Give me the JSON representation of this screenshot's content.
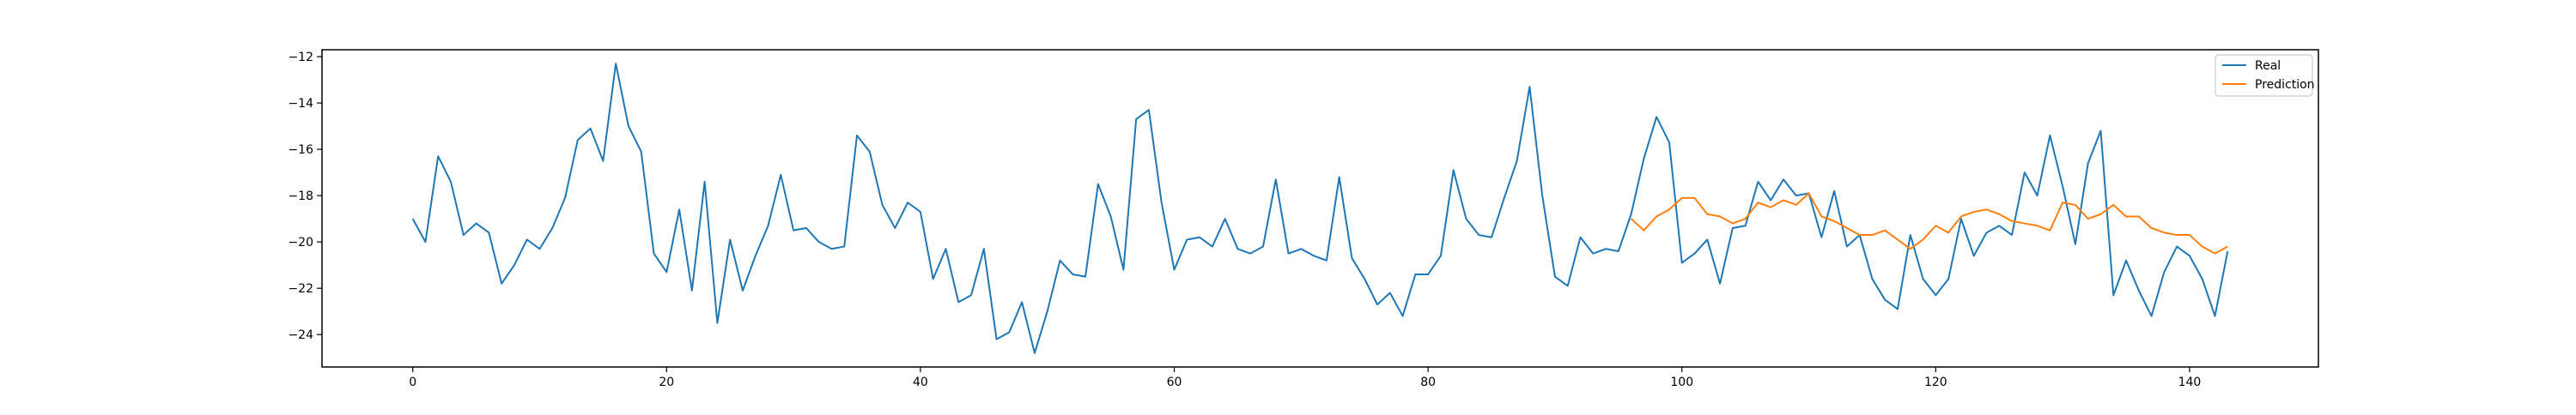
{
  "chart_data": {
    "type": "line",
    "title": "",
    "xlabel": "",
    "ylabel": "",
    "xlim": [
      -7.15,
      150.15
    ],
    "ylim": [
      -25.4,
      -11.7
    ],
    "xticks": [
      0,
      20,
      40,
      60,
      80,
      100,
      120,
      140
    ],
    "yticks": [
      -24,
      -22,
      -20,
      -18,
      -16,
      -14,
      -12
    ],
    "grid": false,
    "legend_position": "upper right",
    "series": [
      {
        "name": "Real",
        "color": "#1f77b4",
        "x_start": 0,
        "values": [
          -19.0,
          -20.0,
          -16.3,
          -17.4,
          -19.7,
          -19.2,
          -19.6,
          -21.8,
          -21.0,
          -19.9,
          -20.3,
          -19.4,
          -18.1,
          -15.6,
          -15.1,
          -16.5,
          -12.3,
          -15.0,
          -16.1,
          -20.5,
          -21.3,
          -18.6,
          -22.1,
          -17.4,
          -23.5,
          -19.9,
          -22.1,
          -20.6,
          -19.3,
          -17.1,
          -19.5,
          -19.4,
          -20.0,
          -20.3,
          -20.2,
          -15.4,
          -16.1,
          -18.4,
          -19.4,
          -18.3,
          -18.7,
          -21.6,
          -20.3,
          -22.6,
          -22.3,
          -20.3,
          -24.2,
          -23.9,
          -22.6,
          -24.8,
          -23.0,
          -20.8,
          -21.4,
          -21.5,
          -17.5,
          -18.9,
          -21.2,
          -14.7,
          -14.3,
          -18.3,
          -21.2,
          -19.9,
          -19.8,
          -20.2,
          -19.0,
          -20.3,
          -20.5,
          -20.2,
          -17.3,
          -20.5,
          -20.3,
          -20.6,
          -20.8,
          -17.2,
          -20.7,
          -21.6,
          -22.7,
          -22.2,
          -23.2,
          -21.4,
          -21.4,
          -20.6,
          -16.9,
          -19.0,
          -19.7,
          -19.8,
          -18.1,
          -16.5,
          -13.3,
          -18.0,
          -21.5,
          -21.9,
          -19.8,
          -20.5,
          -20.3,
          -20.4,
          -18.8,
          -16.4,
          -14.6,
          -15.7,
          -20.9,
          -20.5,
          -19.9,
          -21.8,
          -19.4,
          -19.3,
          -17.4,
          -18.2,
          -17.3,
          -18.0,
          -17.9,
          -19.8,
          -17.8,
          -20.2,
          -19.7,
          -21.6,
          -22.5,
          -22.9,
          -19.7,
          -21.6,
          -22.3,
          -21.6,
          -19.0,
          -20.6,
          -19.6,
          -19.3,
          -19.7,
          -17.0,
          -18.0,
          -15.4,
          -17.6,
          -20.1,
          -16.6,
          -15.2,
          -22.3,
          -20.8,
          -22.1,
          -23.2,
          -21.3,
          -20.2,
          -20.6,
          -21.6,
          -23.2,
          -20.4
        ]
      },
      {
        "name": "Prediction",
        "color": "#ff7f0e",
        "x_start": 96,
        "values": [
          -19.0,
          -19.5,
          -18.9,
          -18.6,
          -18.1,
          -18.1,
          -18.8,
          -18.9,
          -19.2,
          -19.0,
          -18.3,
          -18.5,
          -18.2,
          -18.4,
          -17.9,
          -18.9,
          -19.1,
          -19.4,
          -19.7,
          -19.7,
          -19.5,
          -19.9,
          -20.3,
          -19.9,
          -19.3,
          -19.6,
          -18.9,
          -18.7,
          -18.6,
          -18.8,
          -19.1,
          -19.2,
          -19.3,
          -19.5,
          -18.3,
          -18.4,
          -19.0,
          -18.8,
          -18.4,
          -18.9,
          -18.9,
          -19.4,
          -19.6,
          -19.7,
          -19.7,
          -20.2,
          -20.5,
          -20.2
        ]
      }
    ]
  }
}
